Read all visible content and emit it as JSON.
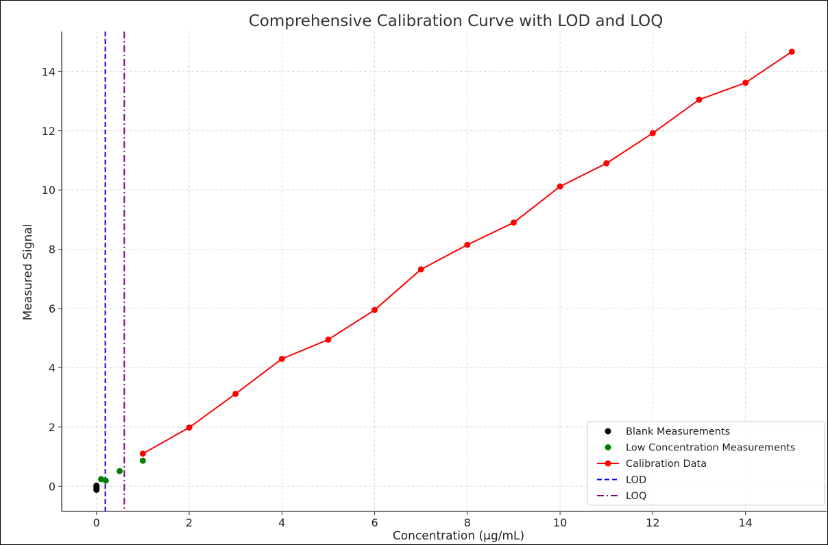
{
  "chart_data": {
    "type": "line",
    "title": "Comprehensive Calibration Curve with LOD and LOQ",
    "xlabel": "Concentration (µg/mL)",
    "ylabel": "Measured Signal",
    "xlim": [
      -0.75,
      15.75
    ],
    "ylim": [
      -0.85,
      15.35
    ],
    "x_ticks": [
      0,
      2,
      4,
      6,
      8,
      10,
      12,
      14
    ],
    "y_ticks": [
      0,
      2,
      4,
      6,
      8,
      10,
      12,
      14
    ],
    "grid": true,
    "legend_position": "lower right",
    "series": [
      {
        "name": "Blank Measurements",
        "kind": "scatter",
        "color": "#000000",
        "x": [
          0,
          0,
          0,
          0,
          0
        ],
        "y": [
          0.02,
          -0.02,
          -0.06,
          -0.09,
          -0.12
        ]
      },
      {
        "name": "Low Concentration Measurements",
        "kind": "scatter",
        "color": "#008000",
        "x": [
          0.1,
          0.2,
          0.5,
          1.0
        ],
        "y": [
          0.24,
          0.19,
          0.51,
          0.86
        ]
      },
      {
        "name": "Calibration Data",
        "kind": "line-marker",
        "color": "#ff0000",
        "x": [
          1,
          2,
          3,
          4,
          5,
          6,
          7,
          8,
          9,
          10,
          11,
          12,
          13,
          14,
          15
        ],
        "y": [
          1.1,
          1.98,
          3.12,
          4.3,
          4.95,
          5.95,
          7.32,
          8.15,
          8.9,
          10.12,
          10.9,
          11.92,
          13.05,
          13.62,
          14.67
        ]
      },
      {
        "name": "LOD",
        "kind": "vline",
        "color": "#0000ff",
        "dash": "dashed",
        "x": 0.19
      },
      {
        "name": "LOQ",
        "kind": "vline",
        "color": "#800080",
        "dash": "dashdot",
        "x": 0.6
      }
    ]
  }
}
